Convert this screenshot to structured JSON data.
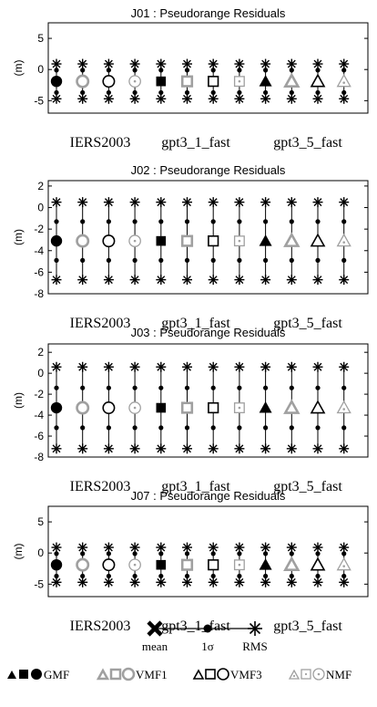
{
  "chart_data": [
    {
      "type": "scatter",
      "title": "J01 : Pseudorange Residuals",
      "ylabel": "(m)",
      "ylim": [
        -7,
        7.5
      ],
      "yticks": [
        -5,
        0,
        5
      ],
      "group_labels": [
        "IERS2003",
        "gpt3_1_fast",
        "gpt3_5_fast"
      ],
      "points": [
        {
          "mean": -1.9,
          "sigma": 1.8,
          "rms": 2.8
        },
        {
          "mean": -1.9,
          "sigma": 1.8,
          "rms": 2.8
        },
        {
          "mean": -1.9,
          "sigma": 1.8,
          "rms": 2.8
        },
        {
          "mean": -1.9,
          "sigma": 1.8,
          "rms": 2.8
        },
        {
          "mean": -1.9,
          "sigma": 1.8,
          "rms": 2.8
        },
        {
          "mean": -1.9,
          "sigma": 1.8,
          "rms": 2.8
        },
        {
          "mean": -1.9,
          "sigma": 1.8,
          "rms": 2.8
        },
        {
          "mean": -1.9,
          "sigma": 1.8,
          "rms": 2.8
        },
        {
          "mean": -1.9,
          "sigma": 1.8,
          "rms": 2.8
        },
        {
          "mean": -1.9,
          "sigma": 1.8,
          "rms": 2.8
        },
        {
          "mean": -1.9,
          "sigma": 1.8,
          "rms": 2.8
        },
        {
          "mean": -1.9,
          "sigma": 1.8,
          "rms": 2.8
        }
      ]
    },
    {
      "type": "scatter",
      "title": "J02 : Pseudorange Residuals",
      "ylabel": "(m)",
      "ylim": [
        -8,
        2.5
      ],
      "yticks": [
        -8,
        -6,
        -4,
        -2,
        0,
        2
      ],
      "group_labels": [
        "IERS2003",
        "gpt3_1_fast",
        "gpt3_5_fast"
      ],
      "points": [
        {
          "mean": -3.1,
          "sigma": 1.8,
          "rms": 3.6
        },
        {
          "mean": -3.1,
          "sigma": 1.8,
          "rms": 3.6
        },
        {
          "mean": -3.1,
          "sigma": 1.8,
          "rms": 3.6
        },
        {
          "mean": -3.1,
          "sigma": 1.8,
          "rms": 3.6
        },
        {
          "mean": -3.1,
          "sigma": 1.8,
          "rms": 3.6
        },
        {
          "mean": -3.1,
          "sigma": 1.8,
          "rms": 3.6
        },
        {
          "mean": -3.1,
          "sigma": 1.8,
          "rms": 3.6
        },
        {
          "mean": -3.1,
          "sigma": 1.8,
          "rms": 3.6
        },
        {
          "mean": -3.1,
          "sigma": 1.8,
          "rms": 3.6
        },
        {
          "mean": -3.1,
          "sigma": 1.8,
          "rms": 3.6
        },
        {
          "mean": -3.1,
          "sigma": 1.8,
          "rms": 3.6
        },
        {
          "mean": -3.1,
          "sigma": 1.8,
          "rms": 3.6
        }
      ]
    },
    {
      "type": "scatter",
      "title": "J03 : Pseudorange Residuals",
      "ylabel": "(m)",
      "ylim": [
        -8,
        2.8
      ],
      "yticks": [
        -8,
        -6,
        -4,
        -2,
        0,
        2
      ],
      "group_labels": [
        "IERS2003",
        "gpt3_1_fast",
        "gpt3_5_fast"
      ],
      "points": [
        {
          "mean": -3.3,
          "sigma": 1.9,
          "rms": 3.9
        },
        {
          "mean": -3.3,
          "sigma": 1.9,
          "rms": 3.9
        },
        {
          "mean": -3.3,
          "sigma": 1.9,
          "rms": 3.9
        },
        {
          "mean": -3.3,
          "sigma": 1.9,
          "rms": 3.9
        },
        {
          "mean": -3.3,
          "sigma": 1.9,
          "rms": 3.9
        },
        {
          "mean": -3.3,
          "sigma": 1.9,
          "rms": 3.9
        },
        {
          "mean": -3.3,
          "sigma": 1.9,
          "rms": 3.9
        },
        {
          "mean": -3.3,
          "sigma": 1.9,
          "rms": 3.9
        },
        {
          "mean": -3.3,
          "sigma": 1.9,
          "rms": 3.9
        },
        {
          "mean": -3.3,
          "sigma": 1.9,
          "rms": 3.9
        },
        {
          "mean": -3.3,
          "sigma": 1.9,
          "rms": 3.9
        },
        {
          "mean": -3.3,
          "sigma": 1.9,
          "rms": 3.9
        }
      ]
    },
    {
      "type": "scatter",
      "title": "J07 : Pseudorange Residuals",
      "ylabel": "(m)",
      "ylim": [
        -7,
        7.5
      ],
      "yticks": [
        -5,
        0,
        5
      ],
      "group_labels": [
        "IERS2003",
        "gpt3_1_fast",
        "gpt3_5_fast"
      ],
      "points": [
        {
          "mean": -1.9,
          "sigma": 1.8,
          "rms": 2.8
        },
        {
          "mean": -1.9,
          "sigma": 1.8,
          "rms": 2.8
        },
        {
          "mean": -1.9,
          "sigma": 1.8,
          "rms": 2.8
        },
        {
          "mean": -1.9,
          "sigma": 1.8,
          "rms": 2.8
        },
        {
          "mean": -1.9,
          "sigma": 1.8,
          "rms": 2.8
        },
        {
          "mean": -1.9,
          "sigma": 1.8,
          "rms": 2.8
        },
        {
          "mean": -1.9,
          "sigma": 1.8,
          "rms": 2.8
        },
        {
          "mean": -1.9,
          "sigma": 1.8,
          "rms": 2.8
        },
        {
          "mean": -1.9,
          "sigma": 1.8,
          "rms": 2.8
        },
        {
          "mean": -1.9,
          "sigma": 1.8,
          "rms": 2.8
        },
        {
          "mean": -1.9,
          "sigma": 1.8,
          "rms": 2.8
        },
        {
          "mean": -1.9,
          "sigma": 1.8,
          "rms": 2.8
        }
      ]
    }
  ],
  "series_markers": [
    {
      "shape": "circle",
      "style": "filled-black"
    },
    {
      "shape": "circle",
      "style": "gray-open"
    },
    {
      "shape": "circle",
      "style": "open-black"
    },
    {
      "shape": "circle",
      "style": "gray-open-dotted"
    },
    {
      "shape": "square",
      "style": "filled-black"
    },
    {
      "shape": "square",
      "style": "gray-open"
    },
    {
      "shape": "square",
      "style": "open-black"
    },
    {
      "shape": "square",
      "style": "gray-open-dotted"
    },
    {
      "shape": "triangle",
      "style": "filled-black"
    },
    {
      "shape": "triangle",
      "style": "gray-open"
    },
    {
      "shape": "triangle",
      "style": "open-black"
    },
    {
      "shape": "triangle",
      "style": "gray-open-dotted"
    }
  ],
  "legend": {
    "stat_labels": [
      "mean",
      "1σ",
      "RMS"
    ],
    "mapping_labels": [
      "GMF",
      "VMF1",
      "VMF3",
      "NMF"
    ]
  },
  "colors": {
    "black": "#000000",
    "gray": "#a0a0a0",
    "axis": "#000000"
  }
}
